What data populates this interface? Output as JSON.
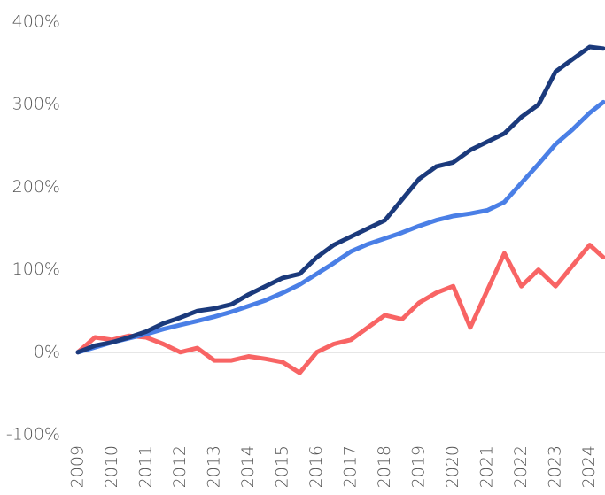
{
  "chart_data": {
    "type": "line",
    "x": [
      2009,
      2009.5,
      2010,
      2010.5,
      2011,
      2011.5,
      2012,
      2012.5,
      2013,
      2013.5,
      2014,
      2014.5,
      2015,
      2015.5,
      2016,
      2016.5,
      2017,
      2017.5,
      2018,
      2018.5,
      2019,
      2019.5,
      2020,
      2020.5,
      2021,
      2021.5,
      2022,
      2022.5,
      2023,
      2023.5,
      2024,
      2024.4
    ],
    "series": [
      {
        "color": "#1b3a7c",
        "values": [
          0,
          8,
          12,
          18,
          25,
          35,
          42,
          50,
          53,
          58,
          70,
          80,
          90,
          95,
          115,
          130,
          140,
          150,
          160,
          185,
          210,
          225,
          230,
          245,
          255,
          265,
          285,
          300,
          340,
          355,
          370,
          368
        ]
      },
      {
        "color": "#4a7fe6",
        "values": [
          0,
          6,
          12,
          17,
          22,
          28,
          33,
          38,
          43,
          49,
          56,
          63,
          72,
          82,
          95,
          108,
          122,
          131,
          138,
          145,
          153,
          160,
          165,
          168,
          172,
          182,
          205,
          228,
          252,
          270,
          290,
          303
        ]
      },
      {
        "color": "#f86464",
        "values": [
          0,
          18,
          15,
          20,
          18,
          10,
          0,
          5,
          -10,
          -10,
          -5,
          -8,
          -12,
          -25,
          0,
          10,
          15,
          30,
          45,
          40,
          60,
          72,
          80,
          30,
          75,
          120,
          80,
          100,
          80,
          105,
          130,
          115
        ]
      }
    ],
    "xlim": [
      2009,
      2024.45
    ],
    "xticks": [
      2009,
      2010,
      2011,
      2012,
      2013,
      2014,
      2015,
      2016,
      2017,
      2018,
      2019,
      2020,
      2021,
      2022,
      2023,
      2024
    ],
    "ylim": [
      -100,
      400
    ],
    "yticks": [
      {
        "value": -100,
        "label": "-100%"
      },
      {
        "value": 0,
        "label": "0%"
      },
      {
        "value": 100,
        "label": "100%"
      },
      {
        "value": 200,
        "label": "200%"
      },
      {
        "value": 300,
        "label": "300%"
      },
      {
        "value": 400,
        "label": "400%"
      }
    ],
    "zero_line": true
  }
}
